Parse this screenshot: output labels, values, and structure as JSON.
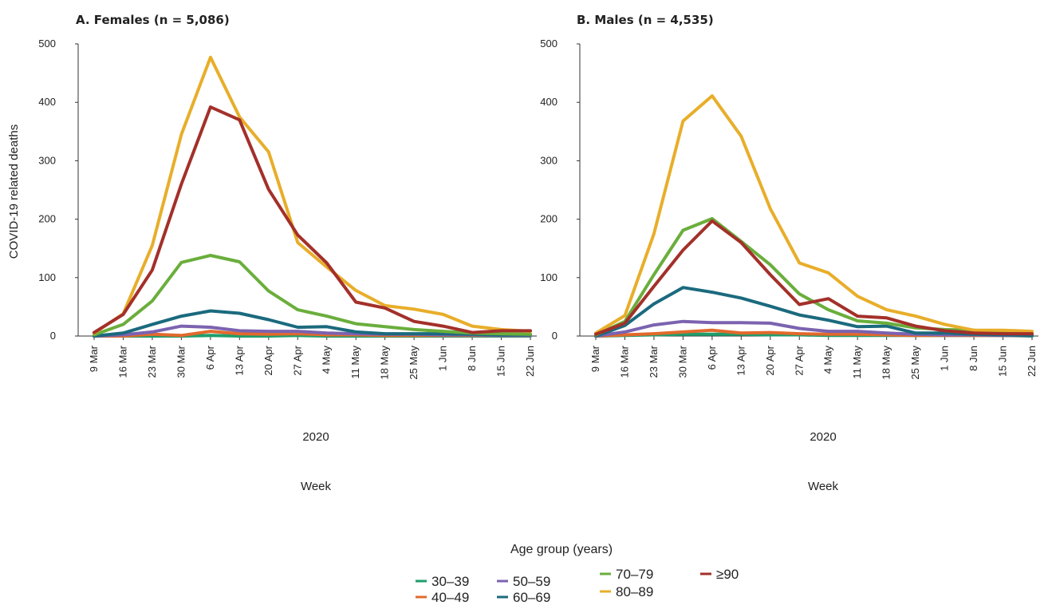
{
  "y_axis_label": "COVID-19 related deaths",
  "year_label": "2020",
  "x_axis_label": "Week",
  "legend": {
    "title": "Age group (years)",
    "items": [
      {
        "label": "30–39",
        "color": "#1e9e6b"
      },
      {
        "label": "40–49",
        "color": "#e26a2c"
      },
      {
        "label": "50–59",
        "color": "#7b63b0"
      },
      {
        "label": "60–69",
        "color": "#1b6a7e"
      },
      {
        "label": "70–79",
        "color": "#6aae3c"
      },
      {
        "label": "80–89",
        "color": "#e8ae2a"
      },
      {
        "label": "≥90",
        "color": "#a3302a"
      }
    ]
  },
  "chart_data": [
    {
      "type": "line",
      "title": "A. Females (n = 5,086)",
      "xlabel": "Week",
      "ylabel": "COVID-19 related deaths",
      "ylim": [
        0,
        500
      ],
      "yticks": [
        0,
        100,
        200,
        300,
        400,
        500
      ],
      "x": [
        "9 Mar",
        "16 Mar",
        "23 Mar",
        "30 Mar",
        "6 Apr",
        "13 Apr",
        "20 Apr",
        "27 Apr",
        "4 May",
        "11 May",
        "18 May",
        "25 May",
        "1 Jun",
        "8 Jun",
        "15 Jun",
        "22 Jun"
      ],
      "series": [
        {
          "name": "30–39",
          "color": "#1e9e6b",
          "values": [
            0,
            0,
            0,
            0,
            1,
            0,
            0,
            1,
            0,
            0,
            0,
            0,
            0,
            0,
            0,
            0
          ]
        },
        {
          "name": "40–49",
          "color": "#e26a2c",
          "values": [
            0,
            0,
            3,
            1,
            8,
            4,
            3,
            4,
            2,
            2,
            1,
            1,
            1,
            1,
            1,
            1
          ]
        },
        {
          "name": "50–59",
          "color": "#7b63b0",
          "values": [
            0,
            2,
            7,
            17,
            15,
            9,
            8,
            8,
            5,
            4,
            3,
            3,
            2,
            2,
            1,
            1
          ]
        },
        {
          "name": "60–69",
          "color": "#1b6a7e",
          "values": [
            0,
            5,
            20,
            34,
            43,
            39,
            28,
            15,
            16,
            7,
            4,
            4,
            4,
            3,
            2,
            2
          ]
        },
        {
          "name": "70–79",
          "color": "#6aae3c",
          "values": [
            2,
            20,
            60,
            126,
            138,
            127,
            77,
            45,
            34,
            21,
            16,
            11,
            8,
            5,
            4,
            3
          ]
        },
        {
          "name": "80–89",
          "color": "#e8ae2a",
          "values": [
            5,
            38,
            155,
            345,
            477,
            375,
            315,
            160,
            118,
            78,
            52,
            46,
            37,
            17,
            11,
            8
          ]
        },
        {
          "name": "≥90",
          "color": "#a3302a",
          "values": [
            6,
            37,
            113,
            260,
            392,
            370,
            251,
            173,
            125,
            58,
            48,
            25,
            17,
            6,
            9,
            9
          ]
        }
      ]
    },
    {
      "type": "line",
      "title": "B. Males (n = 4,535)",
      "xlabel": "Week",
      "ylabel": "",
      "ylim": [
        0,
        500
      ],
      "yticks": [
        0,
        100,
        200,
        300,
        400,
        500
      ],
      "x": [
        "9 Mar",
        "16 Mar",
        "23 Mar",
        "30 Mar",
        "6 Apr",
        "13 Apr",
        "20 Apr",
        "27 Apr",
        "4 May",
        "11 May",
        "18 May",
        "25 May",
        "1 Jun",
        "8 Jun",
        "15 Jun",
        "22 Jun"
      ],
      "series": [
        {
          "name": "30–39",
          "color": "#1e9e6b",
          "values": [
            0,
            1,
            2,
            3,
            3,
            3,
            2,
            2,
            1,
            1,
            1,
            1,
            1,
            1,
            1,
            0
          ]
        },
        {
          "name": "40–49",
          "color": "#e26a2c",
          "values": [
            0,
            2,
            4,
            7,
            10,
            5,
            6,
            4,
            3,
            3,
            2,
            1,
            1,
            1,
            1,
            1
          ]
        },
        {
          "name": "50–59",
          "color": "#7b63b0",
          "values": [
            0,
            7,
            19,
            25,
            23,
            23,
            22,
            13,
            8,
            8,
            5,
            3,
            2,
            2,
            1,
            1
          ]
        },
        {
          "name": "60–69",
          "color": "#1b6a7e",
          "values": [
            0,
            18,
            55,
            83,
            75,
            65,
            51,
            36,
            27,
            16,
            17,
            5,
            5,
            3,
            2,
            1
          ]
        },
        {
          "name": "70–79",
          "color": "#6aae3c",
          "values": [
            2,
            25,
            105,
            181,
            201,
            162,
            122,
            72,
            45,
            26,
            22,
            14,
            11,
            10,
            6,
            4
          ]
        },
        {
          "name": "80–89",
          "color": "#e8ae2a",
          "values": [
            5,
            35,
            175,
            368,
            411,
            342,
            218,
            125,
            108,
            68,
            45,
            34,
            20,
            10,
            10,
            8
          ]
        },
        {
          "name": "≥90",
          "color": "#a3302a",
          "values": [
            3,
            22,
            85,
            147,
            197,
            160,
            105,
            54,
            64,
            34,
            31,
            17,
            9,
            5,
            4,
            4
          ]
        }
      ]
    }
  ]
}
